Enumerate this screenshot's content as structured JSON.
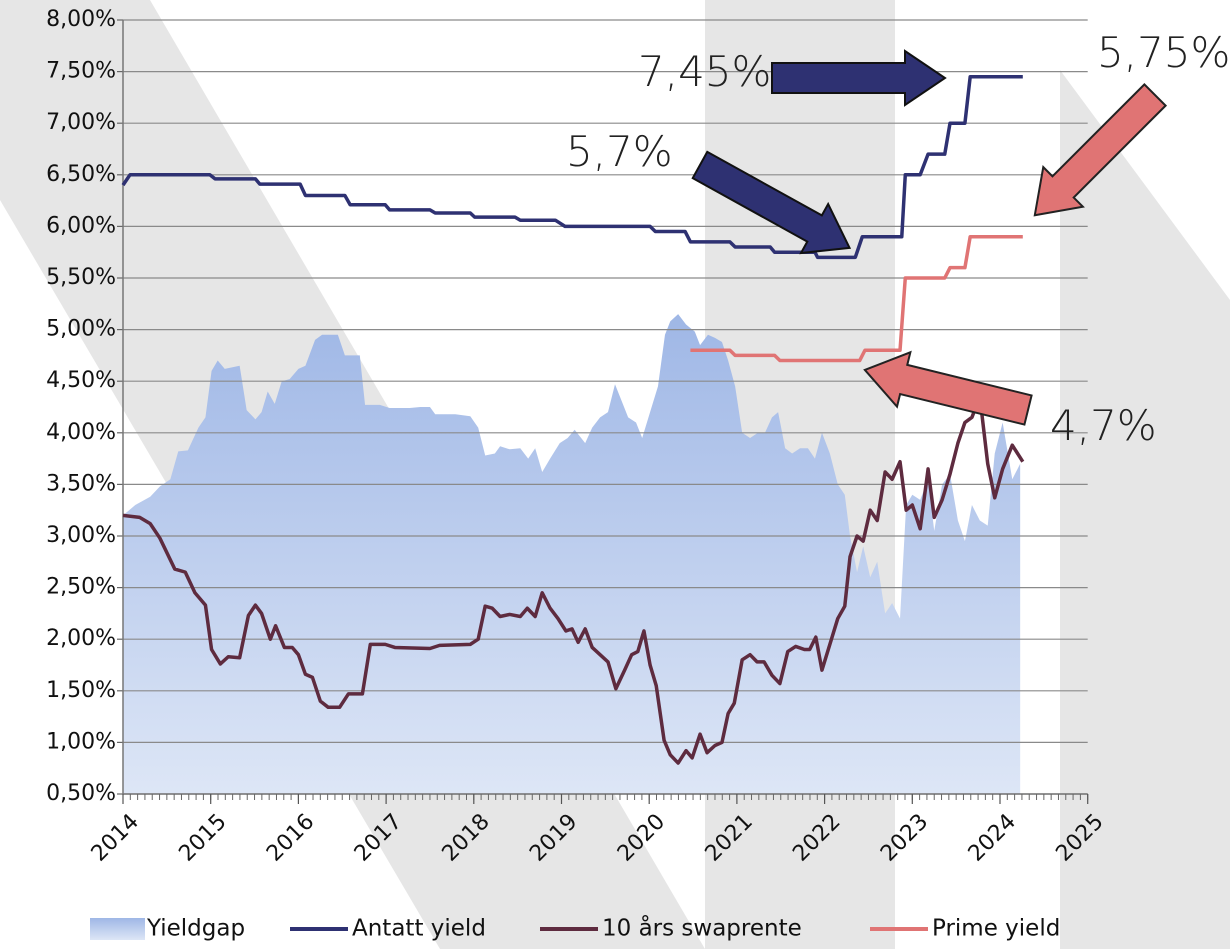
{
  "chart_data": {
    "type": "line",
    "xlim": [
      2014,
      2025
    ],
    "xticks": [
      2014,
      2015,
      2016,
      2017,
      2018,
      2019,
      2020,
      2021,
      2022,
      2023,
      2024,
      2025
    ],
    "ylim": [
      0.5,
      8
    ],
    "yticks": [
      {
        "value": 0.5,
        "label": "0,50%"
      },
      {
        "value": 1,
        "label": "1,00%"
      },
      {
        "value": 1.5,
        "label": "1,50%"
      },
      {
        "value": 2,
        "label": "2,00%"
      },
      {
        "value": 2.5,
        "label": "2,50%"
      },
      {
        "value": 3,
        "label": "3,00%"
      },
      {
        "value": 3.5,
        "label": "3,50%"
      },
      {
        "value": 4,
        "label": "4,00%"
      },
      {
        "value": 4.5,
        "label": "4,50%"
      },
      {
        "value": 5,
        "label": "5,00%"
      },
      {
        "value": 5.5,
        "label": "5,50%"
      },
      {
        "value": 6,
        "label": "6,00%"
      },
      {
        "value": 6.5,
        "label": "6,50%"
      },
      {
        "value": 7,
        "label": "7,00%"
      },
      {
        "value": 7.5,
        "label": "7,50%"
      },
      {
        "value": 8,
        "label": "8,00%"
      }
    ],
    "grid": true,
    "legend": "bottom",
    "series": [
      {
        "name": "Yieldgap",
        "kind": "area",
        "color": "#a9bfe8",
        "x": [
          2014,
          2014.14,
          2014.31,
          2014.42,
          2014.54,
          2014.63,
          2014.74,
          2014.86,
          2014.94,
          2015.01,
          2015.08,
          2015.16,
          2015.33,
          2015.41,
          2015.51,
          2015.58,
          2015.65,
          2015.73,
          2015.81,
          2015.9,
          2016,
          2016.08,
          2016.19,
          2016.27,
          2016.45,
          2016.53,
          2016.7,
          2016.76,
          2016.93,
          2017.04,
          2017.27,
          2017.39,
          2017.5,
          2017.56,
          2017.79,
          2017.96,
          2018.05,
          2018.13,
          2018.24,
          2018.3,
          2018.41,
          2018.53,
          2018.62,
          2018.7,
          2018.78,
          2018.87,
          2018.98,
          2019.07,
          2019.15,
          2019.27,
          2019.35,
          2019.44,
          2019.53,
          2019.61,
          2019.69,
          2019.76,
          2019.85,
          2019.92,
          2020.01,
          2020.1,
          2020.18,
          2020.24,
          2020.33,
          2020.42,
          2020.52,
          2020.58,
          2020.67,
          2020.75,
          2020.83,
          2020.9,
          2020.98,
          2021.06,
          2021.15,
          2021.24,
          2021.32,
          2021.4,
          2021.47,
          2021.55,
          2021.63,
          2021.72,
          2021.81,
          2021.89,
          2021.97,
          2022.06,
          2022.15,
          2022.23,
          2022.29,
          2022.37,
          2022.44,
          2022.52,
          2022.6,
          2022.69,
          2022.77,
          2022.86,
          2022.93,
          2023,
          2023.09,
          2023.18,
          2023.25,
          2023.34,
          2023.43,
          2023.52,
          2023.6,
          2023.68,
          2023.77,
          2023.86,
          2023.94,
          2024.03,
          2024.14,
          2024.23
        ],
        "values": [
          3.2,
          3.3,
          3.38,
          3.48,
          3.55,
          3.82,
          3.83,
          4.05,
          4.15,
          4.6,
          4.7,
          4.62,
          4.65,
          4.22,
          4.13,
          4.2,
          4.4,
          4.28,
          4.5,
          4.52,
          4.62,
          4.65,
          4.9,
          4.95,
          4.95,
          4.75,
          4.75,
          4.27,
          4.27,
          4.24,
          4.24,
          4.25,
          4.25,
          4.18,
          4.18,
          4.16,
          4.05,
          3.78,
          3.8,
          3.87,
          3.84,
          3.85,
          3.75,
          3.85,
          3.62,
          3.75,
          3.9,
          3.95,
          4.03,
          3.9,
          4.05,
          4.15,
          4.2,
          4.47,
          4.3,
          4.15,
          4.1,
          3.95,
          4.2,
          4.45,
          4.95,
          5.08,
          5.15,
          5.05,
          4.98,
          4.85,
          4.95,
          4.92,
          4.88,
          4.7,
          4.45,
          4,
          3.95,
          4,
          4,
          4.15,
          4.2,
          3.85,
          3.8,
          3.85,
          3.85,
          3.75,
          4,
          3.8,
          3.5,
          3.4,
          3,
          2.65,
          2.9,
          2.6,
          2.75,
          2.25,
          2.35,
          2.2,
          3.3,
          3.4,
          3.35,
          3.55,
          3.05,
          3.5,
          3.6,
          3.15,
          2.95,
          3.3,
          3.15,
          3.1,
          3.8,
          4.1,
          3.55,
          3.7
        ]
      },
      {
        "name": "Antatt yield",
        "kind": "line",
        "color": "#2e3172",
        "x": [
          2014,
          2014.08,
          2014.99,
          2015.05,
          2015.51,
          2015.56,
          2016.02,
          2016.08,
          2016.53,
          2016.59,
          2016.99,
          2017.04,
          2017.5,
          2017.56,
          2017.96,
          2018.01,
          2018.47,
          2018.53,
          2018.93,
          2019.04,
          2020.01,
          2020.07,
          2020.41,
          2020.47,
          2020.92,
          2020.98,
          2021.38,
          2021.43,
          2021.89,
          2021.92,
          2022.35,
          2022.43,
          2022.88,
          2022.92,
          2023.09,
          2023.18,
          2023.37,
          2023.43,
          2023.6,
          2023.66,
          2024.26
        ],
        "values": [
          6.4,
          6.5,
          6.5,
          6.46,
          6.46,
          6.41,
          6.41,
          6.3,
          6.3,
          6.21,
          6.21,
          6.16,
          6.16,
          6.13,
          6.13,
          6.09,
          6.09,
          6.06,
          6.06,
          6,
          6,
          5.95,
          5.95,
          5.85,
          5.85,
          5.8,
          5.8,
          5.75,
          5.75,
          5.7,
          5.7,
          5.9,
          5.9,
          6.5,
          6.5,
          6.7,
          6.7,
          7,
          7,
          7.45,
          7.45
        ]
      },
      {
        "name": "10 års swaprente",
        "kind": "line",
        "color": "#5e2b3f",
        "x": [
          2014,
          2014.19,
          2014.31,
          2014.42,
          2014.59,
          2014.71,
          2014.82,
          2014.94,
          2015.01,
          2015.11,
          2015.2,
          2015.33,
          2015.43,
          2015.51,
          2015.58,
          2015.68,
          2015.74,
          2015.84,
          2015.93,
          2016,
          2016.08,
          2016.16,
          2016.25,
          2016.34,
          2016.47,
          2016.57,
          2016.73,
          2016.82,
          2016.99,
          2017.1,
          2017.5,
          2017.61,
          2017.96,
          2018.05,
          2018.13,
          2018.21,
          2018.3,
          2018.41,
          2018.53,
          2018.61,
          2018.7,
          2018.78,
          2018.87,
          2018.96,
          2019.05,
          2019.12,
          2019.19,
          2019.27,
          2019.35,
          2019.44,
          2019.53,
          2019.62,
          2019.72,
          2019.8,
          2019.87,
          2019.94,
          2020.01,
          2020.08,
          2020.17,
          2020.24,
          2020.33,
          2020.42,
          2020.49,
          2020.58,
          2020.66,
          2020.75,
          2020.83,
          2020.9,
          2020.97,
          2021.06,
          2021.15,
          2021.23,
          2021.31,
          2021.4,
          2021.49,
          2021.58,
          2021.67,
          2021.77,
          2021.83,
          2021.9,
          2021.97,
          2022.06,
          2022.15,
          2022.23,
          2022.29,
          2022.37,
          2022.44,
          2022.52,
          2022.6,
          2022.69,
          2022.77,
          2022.86,
          2022.93,
          2023,
          2023.09,
          2023.18,
          2023.25,
          2023.34,
          2023.43,
          2023.52,
          2023.6,
          2023.68,
          2023.77,
          2023.86,
          2023.94,
          2024.03,
          2024.14,
          2024.26
        ],
        "values": [
          3.2,
          3.18,
          3.12,
          2.98,
          2.68,
          2.65,
          2.45,
          2.33,
          1.9,
          1.76,
          1.83,
          1.82,
          2.23,
          2.33,
          2.25,
          2,
          2.13,
          1.92,
          1.92,
          1.85,
          1.66,
          1.63,
          1.4,
          1.34,
          1.34,
          1.47,
          1.47,
          1.95,
          1.95,
          1.92,
          1.91,
          1.94,
          1.95,
          2,
          2.32,
          2.3,
          2.22,
          2.24,
          2.22,
          2.3,
          2.22,
          2.45,
          2.3,
          2.2,
          2.08,
          2.1,
          1.97,
          2.1,
          1.92,
          1.85,
          1.78,
          1.52,
          1.7,
          1.85,
          1.88,
          2.08,
          1.75,
          1.55,
          1.02,
          0.88,
          0.8,
          0.92,
          0.85,
          1.08,
          0.9,
          0.97,
          1,
          1.28,
          1.38,
          1.8,
          1.85,
          1.78,
          1.78,
          1.65,
          1.57,
          1.88,
          1.93,
          1.9,
          1.9,
          2.02,
          1.7,
          1.95,
          2.2,
          2.32,
          2.8,
          3,
          2.95,
          3.25,
          3.15,
          3.62,
          3.55,
          3.72,
          3.25,
          3.3,
          3.07,
          3.65,
          3.18,
          3.35,
          3.6,
          3.9,
          4.1,
          4.15,
          4.35,
          3.7,
          3.37,
          3.65,
          3.88,
          3.72
        ]
      },
      {
        "name": "Prime yield",
        "kind": "line",
        "color": "#e07474",
        "x": [
          2020.47,
          2020.92,
          2020.98,
          2021.43,
          2021.49,
          2022.4,
          2022.46,
          2022.86,
          2022.92,
          2023.37,
          2023.43,
          2023.6,
          2023.66,
          2024.26
        ],
        "values": [
          4.8,
          4.8,
          4.75,
          4.75,
          4.7,
          4.7,
          4.8,
          4.8,
          5.5,
          5.5,
          5.6,
          5.6,
          5.9,
          5.9
        ]
      }
    ],
    "annotations": [
      {
        "text": "7,45%"
      },
      {
        "text": "5,7%"
      },
      {
        "text": "5,75%"
      },
      {
        "text": "4,7%"
      }
    ]
  }
}
